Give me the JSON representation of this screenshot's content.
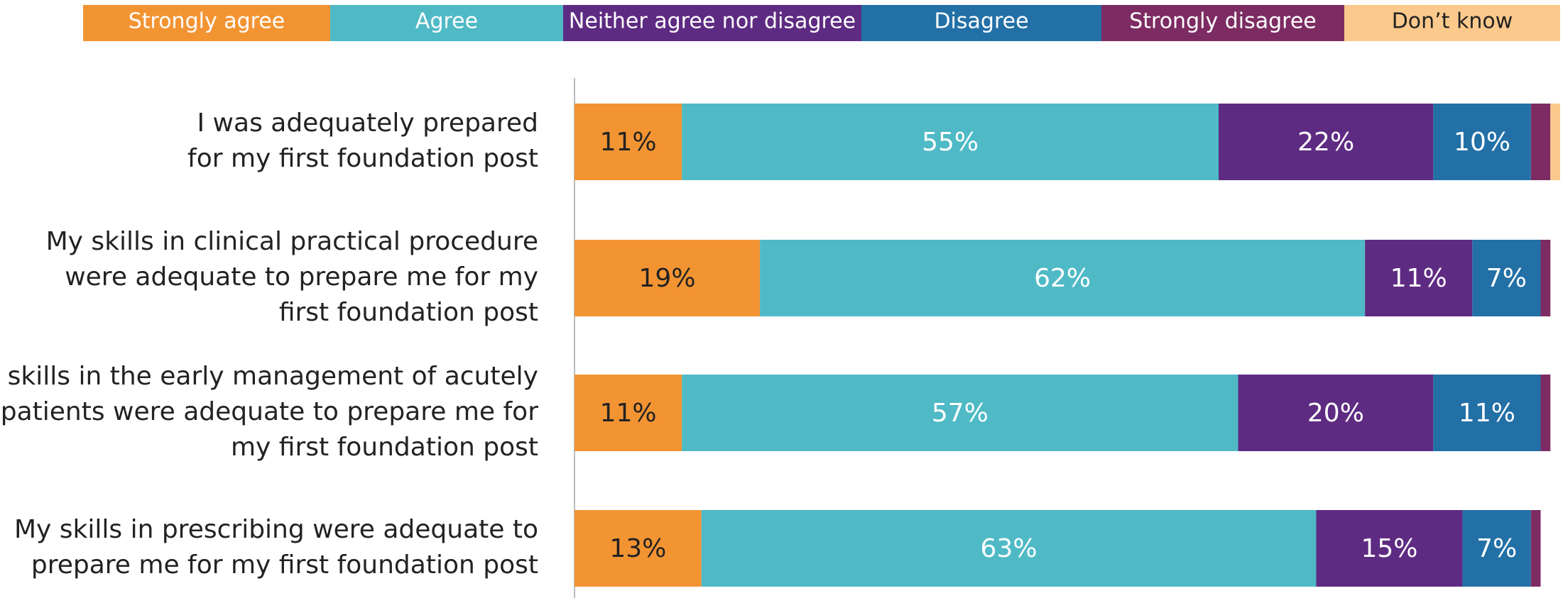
{
  "chart_data": {
    "type": "stacked-barh",
    "categories": [
      "I was adequately prepared\nfor my first foundation post",
      "My skills in clinical practical procedure\nwere adequate to prepare me for my\nfirst foundation post",
      "My skills in the early management of acutely\nill patients were adequate to prepare me for\nmy first foundation post",
      "My skills in prescribing were adequate to\nprepare me for my first foundation post"
    ],
    "series": [
      {
        "name": "Strongly agree",
        "color": "#f39433",
        "values": [
          11,
          19,
          11,
          13
        ],
        "value_labels": [
          "11%",
          "19%",
          "11%",
          "13%"
        ]
      },
      {
        "name": "Agree",
        "color": "#4fbac6",
        "values": [
          55,
          62,
          57,
          63
        ],
        "value_labels": [
          "55%",
          "62%",
          "57%",
          "63%"
        ]
      },
      {
        "name": "Neither agree nor disagree",
        "color": "#5e2b82",
        "values": [
          22,
          11,
          20,
          15
        ],
        "value_labels": [
          "22%",
          "11%",
          "20%",
          "15%"
        ]
      },
      {
        "name": "Disagree",
        "color": "#2370a7",
        "values": [
          10,
          7,
          11,
          7
        ],
        "value_labels": [
          "10%",
          "7%",
          "11%",
          "7%"
        ]
      },
      {
        "name": "Strongly disagree",
        "color": "#7d2c63",
        "values": [
          2,
          1,
          1,
          1
        ],
        "value_labels": [
          null,
          null,
          null,
          null
        ]
      },
      {
        "name": "Don’t know",
        "color": "#fcc98c",
        "values": [
          1,
          0,
          0,
          0
        ],
        "value_labels": [
          null,
          null,
          null,
          null
        ]
      }
    ],
    "xlim": [
      0,
      101
    ],
    "legend": "top"
  }
}
